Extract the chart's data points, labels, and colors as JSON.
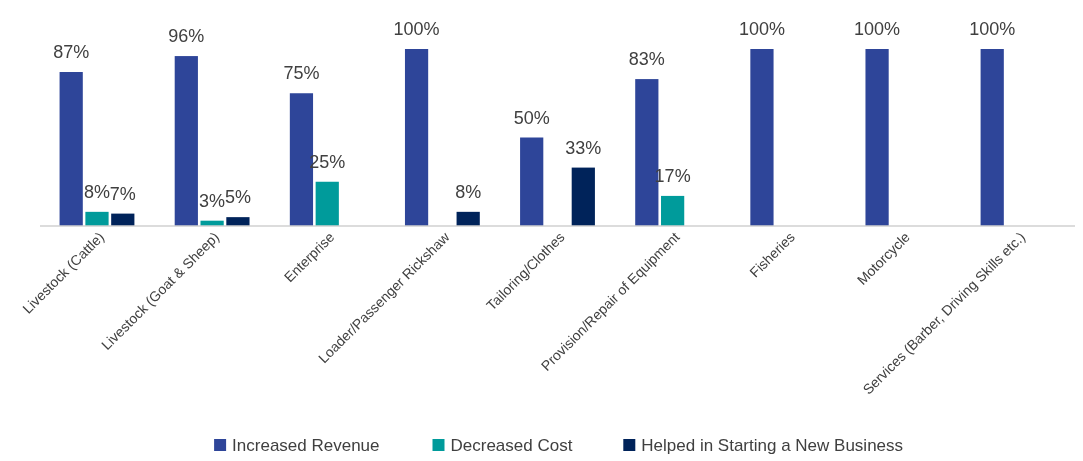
{
  "chart_data": {
    "type": "bar",
    "categories": [
      "Livestock (Cattle)",
      "Livestock (Goat & Sheep)",
      "Enterprise",
      "Loader/Passenger Rickshaw",
      "Tailoring/Clothes",
      "Provision/Repair of Equipment",
      "Fisheries",
      "Motorcycle",
      "Services (Barber, Driving Skills etc.)"
    ],
    "series": [
      {
        "name": "Increased Revenue",
        "color": "#2e4599",
        "values": [
          87,
          96,
          75,
          100,
          50,
          83,
          100,
          100,
          100
        ],
        "value_labels": [
          "87%",
          "96%",
          "75%",
          "100%",
          "50%",
          "83%",
          "100%",
          "100%",
          "100%"
        ]
      },
      {
        "name": "Decreased Cost",
        "color": "#009b9b",
        "values": [
          8,
          3,
          25,
          null,
          null,
          17,
          null,
          null,
          null
        ],
        "value_labels": [
          "8%",
          "3%",
          "25%",
          null,
          null,
          "17%",
          null,
          null,
          null
        ]
      },
      {
        "name": "Helped in Starting a New Business",
        "color": "#00235a",
        "values": [
          7,
          5,
          null,
          8,
          33,
          null,
          null,
          null,
          null
        ],
        "value_labels": [
          "7%",
          "5%",
          null,
          "8%",
          "33%",
          null,
          null,
          null,
          null
        ]
      }
    ],
    "legend": "bottom"
  }
}
